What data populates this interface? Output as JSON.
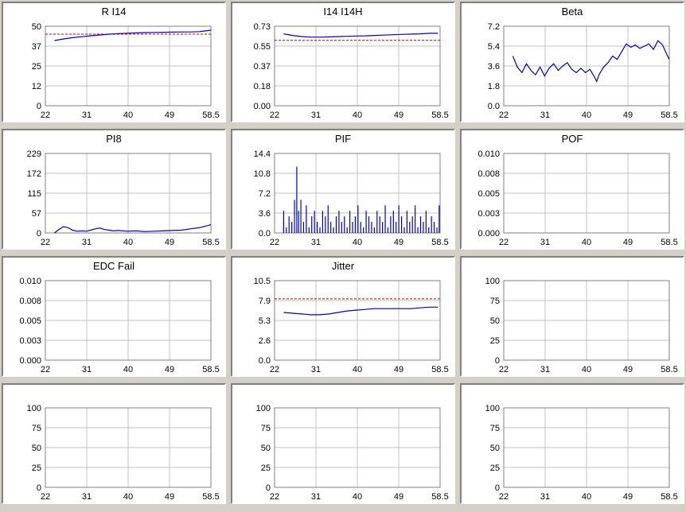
{
  "colors": {
    "series": "#0000c0",
    "threshold": "#c00000",
    "grid": "#c0c0c0",
    "panel_bg": "#ffffff",
    "window_bg": "#d4d0c8"
  },
  "chart_data": [
    {
      "id": "ri14",
      "type": "line",
      "title": "R I14",
      "x_ticks": [
        "22",
        "31",
        "40",
        "49",
        "58.5"
      ],
      "xlim": [
        22,
        58.5
      ],
      "y_ticks": [
        "0",
        "12",
        "25",
        "37",
        "50"
      ],
      "ylim": [
        0,
        50
      ],
      "threshold": 45,
      "series": [
        {
          "x": [
            24,
            26,
            28,
            30,
            32,
            34,
            36,
            38,
            40,
            42,
            44,
            46,
            48,
            50,
            52,
            54,
            56,
            58.5
          ],
          "y": [
            41,
            42,
            42.8,
            43.4,
            44,
            44.5,
            45,
            45.3,
            45.6,
            45.8,
            46,
            46.1,
            46.2,
            46.3,
            46.4,
            46.4,
            46.6,
            47.5
          ]
        }
      ]
    },
    {
      "id": "i14i14h",
      "type": "line",
      "title": "I14 I14H",
      "x_ticks": [
        "22",
        "31",
        "40",
        "49",
        "58.5"
      ],
      "xlim": [
        22,
        58.5
      ],
      "y_ticks": [
        "0.00",
        "0.18",
        "0.37",
        "0.55",
        "0.73"
      ],
      "ylim": [
        0,
        0.73
      ],
      "threshold": 0.6,
      "series": [
        {
          "x": [
            24,
            26,
            28,
            30,
            32,
            34,
            36,
            38,
            40,
            42,
            44,
            46,
            48,
            50,
            52,
            54,
            56,
            58
          ],
          "y": [
            0.66,
            0.645,
            0.635,
            0.63,
            0.63,
            0.632,
            0.635,
            0.637,
            0.64,
            0.642,
            0.645,
            0.648,
            0.652,
            0.655,
            0.658,
            0.66,
            0.665,
            0.665
          ]
        }
      ]
    },
    {
      "id": "beta",
      "type": "line",
      "title": "Beta",
      "x_ticks": [
        "22",
        "31",
        "40",
        "49",
        "58.5"
      ],
      "xlim": [
        22,
        58.5
      ],
      "y_ticks": [
        "0.0",
        "1.8",
        "3.6",
        "5.4",
        "7.2"
      ],
      "ylim": [
        0,
        7.2
      ],
      "series": [
        {
          "x": [
            24,
            25,
            26,
            27,
            28,
            29,
            30,
            31,
            32,
            33,
            34,
            35,
            36,
            37,
            38,
            39,
            40,
            41,
            42,
            42.5,
            43,
            44,
            45,
            46,
            47,
            48,
            49,
            50,
            51,
            52,
            53,
            54,
            55,
            56,
            57,
            58,
            58.5
          ],
          "y": [
            4.5,
            3.5,
            3.0,
            3.8,
            3.2,
            2.8,
            3.5,
            2.7,
            3.4,
            3.8,
            3.2,
            3.6,
            3.9,
            3.3,
            3.0,
            3.4,
            3.0,
            3.3,
            2.6,
            2.2,
            2.8,
            3.5,
            3.9,
            4.5,
            4.2,
            4.9,
            5.6,
            5.3,
            5.5,
            5.2,
            5.4,
            5.6,
            5.1,
            5.9,
            5.5,
            4.6,
            4.2
          ]
        }
      ]
    },
    {
      "id": "pi8",
      "type": "line",
      "title": "PI8",
      "x_ticks": [
        "22",
        "31",
        "40",
        "49",
        "58.5"
      ],
      "xlim": [
        22,
        58.5
      ],
      "y_ticks": [
        "0",
        "57",
        "115",
        "172",
        "229"
      ],
      "ylim": [
        0,
        229
      ],
      "series": [
        {
          "x": [
            24,
            25,
            26,
            27,
            28,
            29,
            30,
            31,
            32,
            33,
            34,
            35,
            36,
            37,
            38,
            40,
            42,
            44,
            46,
            48,
            50,
            52,
            54,
            56,
            58,
            58.5
          ],
          "y": [
            0,
            10,
            18,
            15,
            8,
            5,
            6,
            5,
            8,
            12,
            14,
            10,
            8,
            6,
            7,
            5,
            6,
            4,
            5,
            6,
            7,
            8,
            12,
            15,
            22,
            24
          ]
        }
      ]
    },
    {
      "id": "pif",
      "type": "bar",
      "title": "PIF",
      "x_ticks": [
        "22",
        "31",
        "40",
        "49",
        "58.5"
      ],
      "xlim": [
        22,
        58.5
      ],
      "y_ticks": [
        "0.0",
        "3.6",
        "7.2",
        "10.8",
        "14.4"
      ],
      "ylim": [
        0,
        14.4
      ],
      "series": [
        {
          "x": [
            24,
            24.6,
            25.2,
            25.8,
            26.4,
            26.9,
            27.3,
            27.8,
            28.4,
            29,
            29.6,
            30.2,
            30.8,
            31.4,
            32,
            32.6,
            33.2,
            33.8,
            34.4,
            35,
            35.6,
            36.2,
            36.8,
            37.4,
            38,
            38.6,
            39.2,
            39.8,
            40.4,
            41,
            41.6,
            42.2,
            42.8,
            43.4,
            44,
            44.6,
            45.2,
            45.8,
            46.4,
            47,
            47.6,
            48.2,
            48.8,
            49.4,
            50,
            50.6,
            51.2,
            51.8,
            52.4,
            53,
            53.6,
            54.2,
            54.8,
            55.4,
            56,
            56.6,
            57.2,
            57.8,
            58.3
          ],
          "y": [
            4,
            1,
            3,
            2,
            6,
            12,
            4,
            6,
            2,
            5,
            1,
            3,
            4,
            2,
            1,
            4,
            3,
            5,
            2,
            1,
            3,
            4,
            2,
            3,
            1,
            4,
            2,
            3,
            5,
            2,
            1,
            4,
            3,
            2,
            1,
            4,
            3,
            2,
            5,
            1,
            3,
            4,
            2,
            5,
            3,
            1,
            4,
            2,
            3,
            5,
            1,
            3,
            2,
            4,
            1,
            3,
            2,
            1,
            5
          ]
        }
      ]
    },
    {
      "id": "pof",
      "type": "line",
      "title": "POF",
      "x_ticks": [
        "22",
        "31",
        "40",
        "49",
        "58.5"
      ],
      "xlim": [
        22,
        58.5
      ],
      "y_ticks": [
        "0.000",
        "0.003",
        "0.005",
        "0.008",
        "0.010"
      ],
      "ylim": [
        0,
        0.01
      ],
      "series": []
    },
    {
      "id": "edcfail",
      "type": "line",
      "title": "EDC Fail",
      "x_ticks": [
        "22",
        "31",
        "40",
        "49",
        "58.5"
      ],
      "xlim": [
        22,
        58.5
      ],
      "y_ticks": [
        "0.000",
        "0.003",
        "0.005",
        "0.008",
        "0.010"
      ],
      "ylim": [
        0,
        0.01
      ],
      "series": []
    },
    {
      "id": "jitter",
      "type": "line",
      "title": "Jitter",
      "x_ticks": [
        "22",
        "31",
        "40",
        "49",
        "58.5"
      ],
      "xlim": [
        22,
        58.5
      ],
      "y_ticks": [
        "0.0",
        "2.6",
        "5.3",
        "7.9",
        "10.5"
      ],
      "ylim": [
        0,
        10.5
      ],
      "threshold": 8.1,
      "series": [
        {
          "x": [
            24,
            26,
            28,
            30,
            32,
            34,
            36,
            38,
            40,
            42,
            44,
            46,
            48,
            50,
            52,
            54,
            56,
            58
          ],
          "y": [
            6.3,
            6.2,
            6.1,
            6.0,
            6.0,
            6.1,
            6.3,
            6.5,
            6.6,
            6.7,
            6.8,
            6.8,
            6.8,
            6.8,
            6.8,
            6.9,
            7.0,
            7.0
          ]
        }
      ]
    },
    {
      "id": "empty1",
      "type": "line",
      "title": "",
      "x_ticks": [
        "22",
        "31",
        "40",
        "49",
        "58.5"
      ],
      "xlim": [
        22,
        58.5
      ],
      "y_ticks": [
        "0",
        "25",
        "50",
        "75",
        "100"
      ],
      "ylim": [
        0,
        100
      ],
      "series": []
    },
    {
      "id": "empty2",
      "type": "line",
      "title": "",
      "x_ticks": [
        "22",
        "31",
        "40",
        "49",
        "58.5"
      ],
      "xlim": [
        22,
        58.5
      ],
      "y_ticks": [
        "0",
        "25",
        "50",
        "75",
        "100"
      ],
      "ylim": [
        0,
        100
      ],
      "series": []
    },
    {
      "id": "empty3",
      "type": "line",
      "title": "",
      "x_ticks": [
        "22",
        "31",
        "40",
        "49",
        "58.5"
      ],
      "xlim": [
        22,
        58.5
      ],
      "y_ticks": [
        "0",
        "25",
        "50",
        "75",
        "100"
      ],
      "ylim": [
        0,
        100
      ],
      "series": []
    },
    {
      "id": "empty4",
      "type": "line",
      "title": "",
      "x_ticks": [
        "22",
        "31",
        "40",
        "49",
        "58.5"
      ],
      "xlim": [
        22,
        58.5
      ],
      "y_ticks": [
        "0",
        "25",
        "50",
        "75",
        "100"
      ],
      "ylim": [
        0,
        100
      ],
      "series": []
    }
  ]
}
